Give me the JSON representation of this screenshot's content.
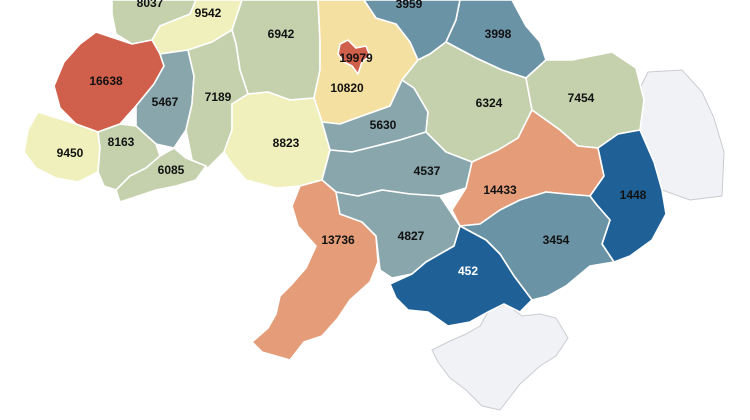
{
  "colors": {
    "very_high": "#d0604b",
    "high": "#e49d78",
    "mid_high": "#f4e0a0",
    "mid": "#f0f0bd",
    "mid_low": "#c4d1ac",
    "low": "#88a6ab",
    "lower": "#6b93a6",
    "lowest": "#1f6197",
    "no_data": "#f1f2f5"
  },
  "regions": [
    {
      "id": "volyn",
      "label": "8037"
    },
    {
      "id": "rivne",
      "label": "9542"
    },
    {
      "id": "zhytomyr",
      "label": "6942"
    },
    {
      "id": "kyiv-oblast",
      "label": "10820"
    },
    {
      "id": "kyiv-city",
      "label": "19979"
    },
    {
      "id": "chernihiv",
      "label": "3959"
    },
    {
      "id": "sumy",
      "label": "3998"
    },
    {
      "id": "lviv",
      "label": "16638"
    },
    {
      "id": "ternopil",
      "label": "5467"
    },
    {
      "id": "khmelnytskyi",
      "label": "7189"
    },
    {
      "id": "zakarpattia",
      "label": "9450"
    },
    {
      "id": "ivano-frankivsk",
      "label": "8163"
    },
    {
      "id": "chernivtsi",
      "label": "6085"
    },
    {
      "id": "vinnytsia",
      "label": "8823"
    },
    {
      "id": "cherkasy",
      "label": "5630"
    },
    {
      "id": "poltava",
      "label": "6324"
    },
    {
      "id": "kharkiv",
      "label": "7454"
    },
    {
      "id": "kirovohrad",
      "label": "4537"
    },
    {
      "id": "dnipropetrovsk",
      "label": "14433"
    },
    {
      "id": "donetsk",
      "label": "1448"
    },
    {
      "id": "odesa",
      "label": "13736"
    },
    {
      "id": "mykolaiv",
      "label": "4827"
    },
    {
      "id": "zaporizhzhia",
      "label": "3454"
    },
    {
      "id": "kherson",
      "label": "452"
    }
  ]
}
